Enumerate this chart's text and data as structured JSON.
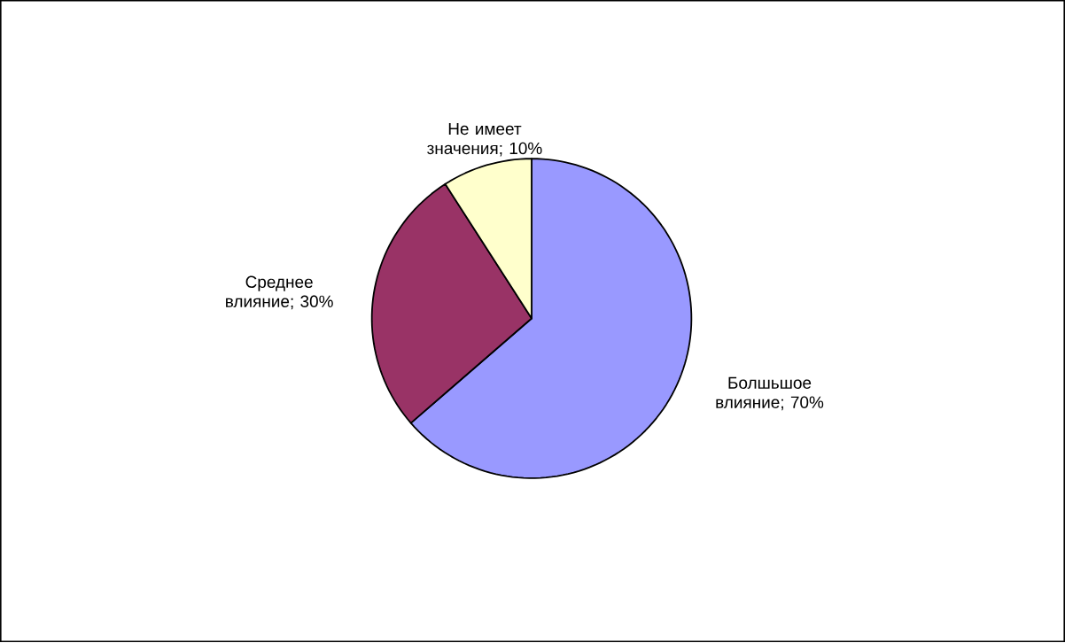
{
  "chart_data": {
    "type": "pie",
    "categories": [
      "Болшьшое влияние; 70%",
      "Среднее влияние; 30%",
      "Не имеет значения; 10%"
    ],
    "values": [
      70,
      30,
      10
    ],
    "colors": [
      "#9999ff",
      "#993366",
      "#ffffcc"
    ]
  }
}
